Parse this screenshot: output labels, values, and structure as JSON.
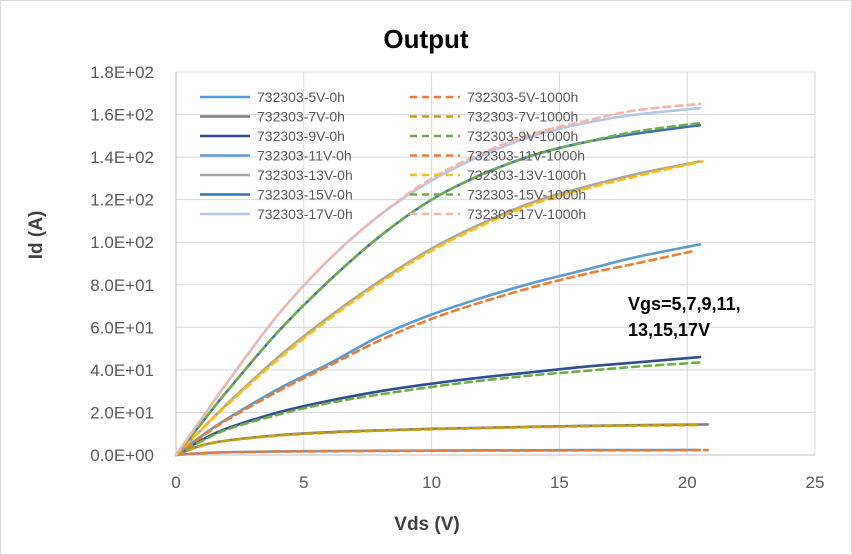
{
  "chart_data": {
    "type": "line",
    "title": "Output",
    "xlabel": "Vds (V)",
    "ylabel": "Id (A)",
    "xlim": [
      0,
      25
    ],
    "ylim": [
      0,
      180
    ],
    "x_ticks": [
      "0",
      "5",
      "10",
      "15",
      "20",
      "25"
    ],
    "y_ticks": [
      "0.0E+00",
      "2.0E+01",
      "4.0E+01",
      "6.0E+01",
      "8.0E+01",
      "1.0E+02",
      "1.2E+02",
      "1.4E+02",
      "1.6E+02",
      "1.8E+02"
    ],
    "grid": true,
    "legend_position": "top-left inside plot",
    "annotation": [
      "Vgs=5,7,9,11,",
      "13,15,17V"
    ],
    "series": [
      {
        "name": "732303-5V-0h",
        "color": "#5b9bd5",
        "dash": "solid",
        "x": [
          0,
          1,
          2,
          4,
          6,
          8,
          10,
          12,
          14,
          16,
          18,
          20.5
        ],
        "y": [
          0,
          0.9,
          1.3,
          1.7,
          1.9,
          2.0,
          2.1,
          2.2,
          2.2,
          2.3,
          2.3,
          2.4
        ]
      },
      {
        "name": "732303-7V-0h",
        "color": "#808080",
        "dash": "solid",
        "x": [
          0,
          1,
          2,
          4,
          6,
          8,
          10,
          12,
          14,
          16,
          18,
          20.8
        ],
        "y": [
          0,
          4.5,
          6.8,
          9.3,
          10.7,
          11.6,
          12.3,
          12.8,
          13.3,
          13.7,
          14.0,
          14.4
        ]
      },
      {
        "name": "732303-9V-0h",
        "color": "#2f4f8f",
        "dash": "solid",
        "x": [
          0,
          1,
          2,
          4,
          6,
          8,
          10,
          12,
          14,
          16,
          18,
          20.5
        ],
        "y": [
          0,
          7,
          12.5,
          20,
          25.5,
          30,
          33.5,
          36.5,
          39,
          41.5,
          43.5,
          46
        ]
      },
      {
        "name": "732303-11V-0h",
        "color": "#5b9bd5",
        "dash": "solid",
        "x": [
          0,
          1,
          2,
          4,
          6,
          8,
          10,
          12,
          14,
          16,
          18,
          20.5
        ],
        "y": [
          0,
          9,
          17,
          31,
          43,
          56,
          66,
          74,
          81,
          87,
          93,
          99
        ]
      },
      {
        "name": "732303-13V-0h",
        "color": "#a5a5a5",
        "dash": "solid",
        "x": [
          0,
          1,
          2,
          4,
          6,
          8,
          10,
          12,
          14,
          16,
          18,
          20.5
        ],
        "y": [
          0,
          12,
          24,
          46,
          65,
          82,
          97,
          109,
          119,
          126,
          132,
          138
        ]
      },
      {
        "name": "732303-15V-0h",
        "color": "#3d6fb8",
        "dash": "solid",
        "x": [
          0,
          1,
          2,
          4,
          6,
          8,
          10,
          12,
          14,
          16,
          18,
          20.5
        ],
        "y": [
          0,
          15,
          30,
          58,
          82,
          103,
          120,
          132,
          141,
          147,
          151,
          155
        ]
      },
      {
        "name": "732303-17V-0h",
        "color": "#b4c7e7",
        "dash": "solid",
        "x": [
          0,
          1,
          2,
          4,
          6,
          8,
          10,
          12,
          14,
          16,
          18,
          20.5
        ],
        "y": [
          0,
          17,
          34,
          66,
          92,
          113,
          129,
          141,
          150,
          156,
          160,
          163
        ]
      },
      {
        "name": "732303-5V-1000h",
        "color": "#ed7d31",
        "dash": "dashed",
        "x": [
          0,
          1,
          2,
          4,
          6,
          8,
          10,
          12,
          14,
          16,
          18,
          20.8
        ],
        "y": [
          0,
          0.8,
          1.2,
          1.6,
          1.8,
          1.9,
          2.0,
          2.1,
          2.1,
          2.2,
          2.2,
          2.3
        ]
      },
      {
        "name": "732303-7V-1000h",
        "color": "#c9a100",
        "dash": "dashed",
        "x": [
          0,
          1,
          2,
          4,
          6,
          8,
          10,
          12,
          14,
          16,
          18,
          20.5
        ],
        "y": [
          0,
          4.4,
          6.7,
          9.1,
          10.5,
          11.4,
          12.1,
          12.6,
          13.1,
          13.5,
          13.8,
          14.1
        ]
      },
      {
        "name": "732303-9V-1000h",
        "color": "#70ad47",
        "dash": "dashed",
        "x": [
          0,
          1,
          2,
          4,
          6,
          8,
          10,
          12,
          14,
          16,
          18,
          20.5
        ],
        "y": [
          0,
          6.5,
          12,
          19,
          24.5,
          28.5,
          32,
          35,
          37.5,
          39.5,
          41.5,
          43.5
        ]
      },
      {
        "name": "732303-11V-1000h",
        "color": "#ed7d31",
        "dash": "dashed",
        "x": [
          0,
          1,
          2,
          4,
          6,
          8,
          10,
          12,
          14,
          16,
          18,
          20.3
        ],
        "y": [
          0,
          8.5,
          16.5,
          30,
          42,
          54,
          64,
          72,
          79,
          85,
          90,
          96
        ]
      },
      {
        "name": "732303-13V-1000h",
        "color": "#ffc000",
        "dash": "dashed",
        "x": [
          0,
          1,
          2,
          4,
          6,
          8,
          10,
          12,
          14,
          16,
          18,
          20.6
        ],
        "y": [
          0,
          12,
          23.5,
          45,
          64,
          81,
          96,
          108,
          118,
          125,
          131,
          138
        ]
      },
      {
        "name": "732303-15V-1000h",
        "color": "#70ad47",
        "dash": "dashed",
        "x": [
          0,
          1,
          2,
          4,
          6,
          8,
          10,
          12,
          14,
          16,
          18,
          20.5
        ],
        "y": [
          0,
          15,
          30,
          58,
          82,
          103,
          120,
          132,
          141,
          147,
          152,
          156
        ]
      },
      {
        "name": "732303-17V-1000h",
        "color": "#f4b6a6",
        "dash": "dashed",
        "x": [
          0,
          1,
          2,
          4,
          6,
          8,
          10,
          12,
          14,
          16,
          18,
          20.5
        ],
        "y": [
          0,
          17,
          34,
          66,
          92,
          113,
          130,
          142,
          151,
          157,
          162,
          165
        ]
      }
    ]
  }
}
